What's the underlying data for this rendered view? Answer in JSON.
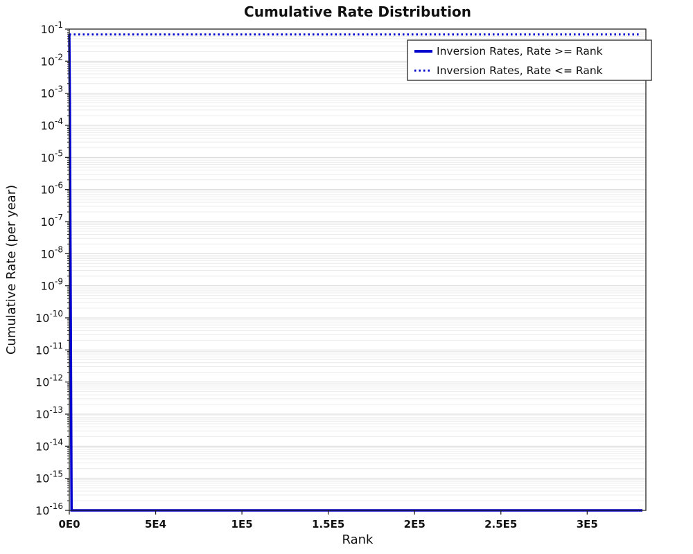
{
  "figure": {
    "title": "Cumulative Rate Distribution"
  },
  "chart_data": {
    "type": "line",
    "title": "Cumulative Rate Distribution",
    "xlabel": "Rank",
    "ylabel": "Cumulative Rate (per year)",
    "x_axis": {
      "lim": [
        0,
        334000
      ],
      "ticks": [
        {
          "value": 0,
          "label": "0E0"
        },
        {
          "value": 50000,
          "label": "5E4"
        },
        {
          "value": 100000,
          "label": "1E5"
        },
        {
          "value": 150000,
          "label": "1.5E5"
        },
        {
          "value": 200000,
          "label": "2E5"
        },
        {
          "value": 250000,
          "label": "2.5E5"
        },
        {
          "value": 300000,
          "label": "3E5"
        }
      ]
    },
    "y_axis": {
      "scale": "log",
      "lim_exponents": [
        -16,
        -1
      ],
      "tick_base": "10",
      "tick_exponents": [
        -1,
        -2,
        -3,
        -4,
        -5,
        -6,
        -7,
        -8,
        -9,
        -10,
        -11,
        -12,
        -13,
        -14,
        -15,
        -16
      ]
    },
    "grid": {
      "show": true,
      "major_color": "#dadada",
      "minor_color": "#ececec"
    },
    "frame_color": "#222222",
    "series": [
      {
        "name": "Inversion Rates, Rate >= Rank",
        "color": "#0000cd",
        "line_style": "solid",
        "line_width": 3.5,
        "points": [
          [
            0,
            0.068
          ],
          [
            300,
            0.0005
          ],
          [
            1300,
            1e-16
          ],
          [
            332000,
            1e-16
          ]
        ]
      },
      {
        "name": "Inversion Rates, Rate <= Rank",
        "color": "#0000cd",
        "line_style": "dotted",
        "line_width": 3,
        "points": [
          [
            0,
            0.068
          ],
          [
            330000,
            0.068
          ]
        ]
      }
    ],
    "legend": {
      "position": "top-right",
      "border": true,
      "entries": [
        "Inversion Rates, Rate >= Rank",
        "Inversion Rates, Rate <= Rank"
      ]
    }
  }
}
